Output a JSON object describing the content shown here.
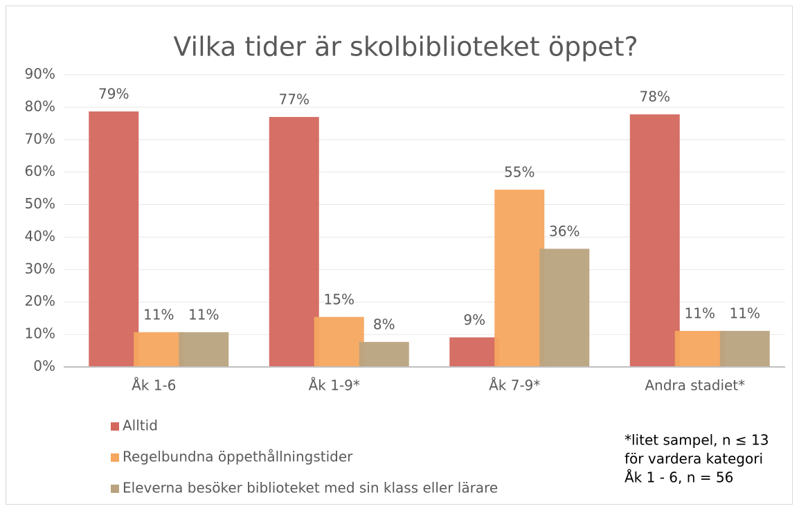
{
  "chart_data": {
    "type": "bar",
    "title": "Vilka tider är skolbiblioteket öppet?",
    "categories": [
      "Åk 1-6",
      "Åk 1-9*",
      "Åk 7-9*",
      "Andra stadiet*"
    ],
    "series": [
      {
        "name": "Alltid",
        "color": "#d4675d",
        "values": [
          78.7,
          77,
          9.1,
          77.8
        ],
        "value_labels": [
          "79%",
          "77%",
          "9%",
          "78%"
        ]
      },
      {
        "name": "Regelbundna öppethållningstider",
        "color": "#f5a65f",
        "values": [
          10.7,
          15.4,
          54.6,
          11.1
        ],
        "value_labels": [
          "11%",
          "15%",
          "55%",
          "11%"
        ]
      },
      {
        "name": "Eleverna besöker biblioteket med sin klass eller lärare",
        "color": "#b9a37f",
        "values": [
          10.7,
          7.7,
          36.4,
          11.1
        ],
        "value_labels": [
          "11%",
          "8%",
          "36%",
          "11%"
        ]
      }
    ],
    "ylim": [
      0,
      90
    ],
    "yticks": [
      {
        "value": 0,
        "label": "0%"
      },
      {
        "value": 10,
        "label": "10%"
      },
      {
        "value": 20,
        "label": "20%"
      },
      {
        "value": 30,
        "label": "30%"
      },
      {
        "value": 40,
        "label": "40%"
      },
      {
        "value": 50,
        "label": "50%"
      },
      {
        "value": 60,
        "label": "60%"
      },
      {
        "value": 70,
        "label": "70%"
      },
      {
        "value": 80,
        "label": "80%"
      },
      {
        "value": 90,
        "label": "90%"
      }
    ],
    "grid": true,
    "legend": "bottom-left",
    "annotation": [
      "*litet sampel, n ≤ 13",
      "för vardera kategori",
      "Åk 1 - 6, n = 56"
    ]
  }
}
